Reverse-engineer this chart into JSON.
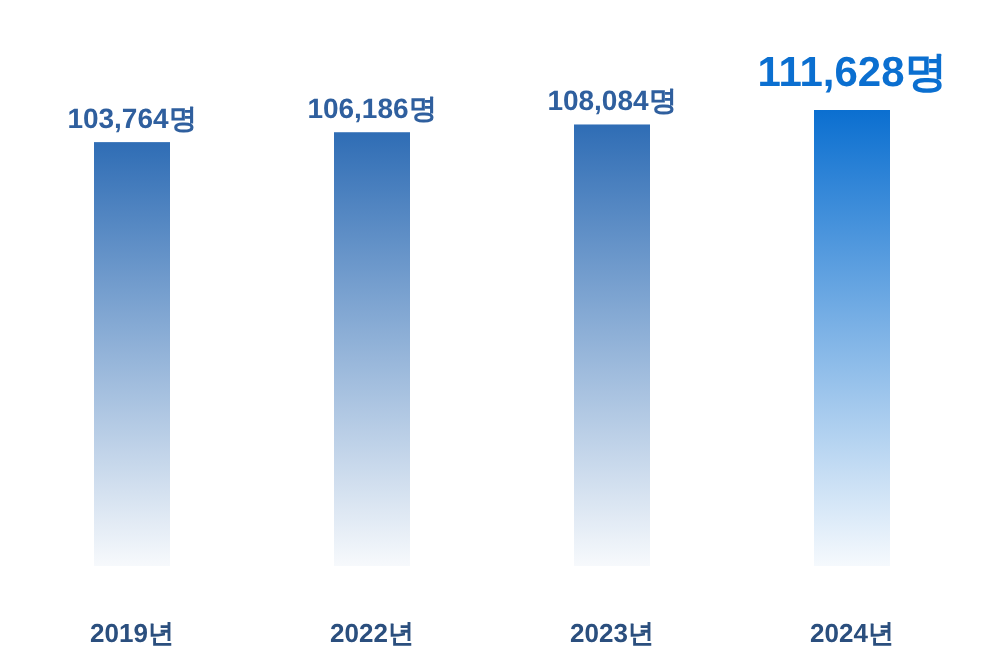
{
  "chart_data": {
    "type": "bar",
    "categories": [
      "2019년",
      "2022년",
      "2023년",
      "2024년"
    ],
    "values": [
      103764,
      106186,
      108084,
      111628
    ],
    "value_labels": [
      "103,764명",
      "106,186명",
      "108,084명",
      "111,628명"
    ],
    "colors": [
      "#2f6db5",
      "#2f6db5",
      "#2f6db5",
      "#0b6fd0"
    ],
    "tick_labels": "x"
  }
}
